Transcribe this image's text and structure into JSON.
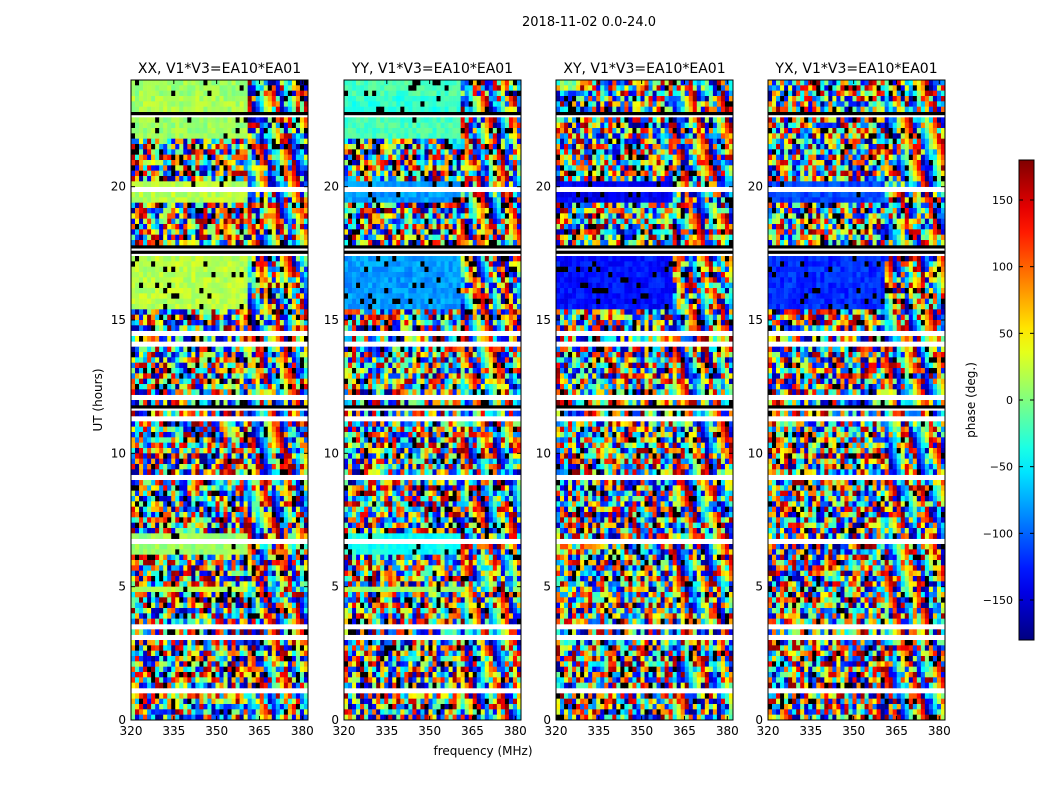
{
  "chart_data": {
    "type": "heatmap",
    "title": "2018-11-02 0.0-24.0",
    "xlabel": "frequency (MHz)",
    "ylabel": "UT (hours)",
    "xlim": [
      320,
      382
    ],
    "ylim": [
      0,
      24
    ],
    "x_ticks": [
      320,
      335,
      350,
      365,
      380
    ],
    "y_ticks": [
      0,
      5,
      10,
      15,
      20
    ],
    "panels": [
      {
        "title": "XX, V1*V3=EA10*EA01",
        "polarization": "XX",
        "baseline": "V1*V3=EA10*EA01"
      },
      {
        "title": "YY, V1*V3=EA10*EA01",
        "polarization": "YY",
        "baseline": "V1*V3=EA10*EA01"
      },
      {
        "title": "XY, V1*V3=EA10*EA01",
        "polarization": "XY",
        "baseline": "V1*V3=EA10*EA01"
      },
      {
        "title": "YX, V1*V3=EA10*EA01",
        "polarization": "YX",
        "baseline": "V1*V3=EA10*EA01"
      }
    ],
    "colorbar": {
      "label": "phase (deg.)",
      "range": [
        -180,
        180
      ],
      "ticks": [
        -150,
        -100,
        -50,
        0,
        50,
        100,
        150
      ],
      "tick_labels": [
        "−150",
        "−100",
        "−50",
        "0",
        "50",
        "100",
        "150"
      ],
      "colormap": "jet"
    },
    "coherent_fringe_freq_start_mhz": 361
  },
  "colors": {
    "background": "#ffffff",
    "axis": "#000000",
    "flagged": "#ffffff",
    "jet": [
      "#00007f",
      "#0000ff",
      "#007fff",
      "#00ffff",
      "#7fff7f",
      "#ffff00",
      "#ff7f00",
      "#ff0000",
      "#7f0000"
    ]
  }
}
